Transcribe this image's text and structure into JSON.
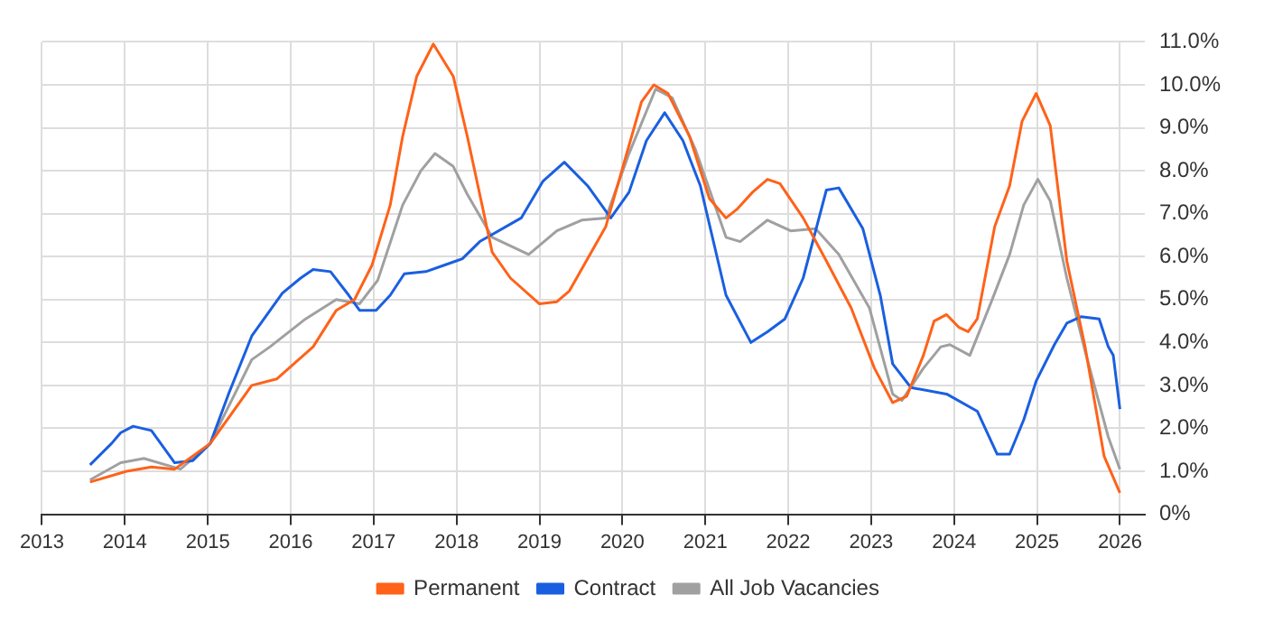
{
  "chart_data": {
    "type": "line",
    "legend": "bottom",
    "grid": true,
    "marker": "none",
    "line_style": "solid",
    "xlim": [
      2013,
      2026.3
    ],
    "xticks": [
      2013,
      2014,
      2015,
      2016,
      2017,
      2018,
      2019,
      2020,
      2021,
      2022,
      2023,
      2024,
      2025,
      2026
    ],
    "ylim": [
      0,
      11
    ],
    "yticks": [
      {
        "value": 0,
        "label": "0%"
      },
      {
        "value": 1,
        "label": "1.0%"
      },
      {
        "value": 2,
        "label": "2.0%"
      },
      {
        "value": 3,
        "label": "3.0%"
      },
      {
        "value": 4,
        "label": "4.0%"
      },
      {
        "value": 5,
        "label": "5.0%"
      },
      {
        "value": 6,
        "label": "6.0%"
      },
      {
        "value": 7,
        "label": "7.0%"
      },
      {
        "value": 8,
        "label": "8.0%"
      },
      {
        "value": 9,
        "label": "9.0%"
      },
      {
        "value": 10,
        "label": "10.0%"
      },
      {
        "value": 11,
        "label": "11.0%"
      }
    ],
    "series": [
      {
        "name": "Permanent",
        "color": "#ff6219",
        "x": [
          2013.58,
          2014.02,
          2014.32,
          2014.6,
          2015.03,
          2015.53,
          2015.83,
          2016.27,
          2016.55,
          2016.77,
          2016.98,
          2017.2,
          2017.35,
          2017.52,
          2017.72,
          2017.96,
          2018.13,
          2018.43,
          2018.65,
          2019.0,
          2019.21,
          2019.36,
          2019.8,
          2020.23,
          2020.38,
          2020.55,
          2020.81,
          2021.05,
          2021.25,
          2021.38,
          2021.57,
          2021.75,
          2021.9,
          2022.18,
          2022.46,
          2022.76,
          2023.04,
          2023.26,
          2023.43,
          2023.63,
          2023.76,
          2023.91,
          2024.06,
          2024.17,
          2024.28,
          2024.49,
          2024.67,
          2024.82,
          2024.99,
          2025.16,
          2025.36,
          2025.58,
          2025.81,
          2026.0
        ],
        "values": [
          0.75,
          1.0,
          1.1,
          1.05,
          1.65,
          3.0,
          3.15,
          3.9,
          4.75,
          5.0,
          5.8,
          7.2,
          8.8,
          10.2,
          10.95,
          10.2,
          8.8,
          6.1,
          5.5,
          4.9,
          4.95,
          5.2,
          6.7,
          9.6,
          10.0,
          9.8,
          8.8,
          7.35,
          6.9,
          7.1,
          7.5,
          7.8,
          7.7,
          6.9,
          5.9,
          4.8,
          3.4,
          2.6,
          2.75,
          3.7,
          4.5,
          4.65,
          4.35,
          4.25,
          4.55,
          6.7,
          7.65,
          9.15,
          9.8,
          9.05,
          5.9,
          3.9,
          1.35,
          0.5
        ]
      },
      {
        "name": "Contract",
        "color": "#1a5fe0",
        "x": [
          2013.58,
          2013.84,
          2013.95,
          2014.1,
          2014.32,
          2014.6,
          2014.82,
          2015.03,
          2015.25,
          2015.53,
          2015.9,
          2016.12,
          2016.27,
          2016.48,
          2016.7,
          2016.83,
          2017.03,
          2017.2,
          2017.37,
          2017.63,
          2017.85,
          2018.07,
          2018.28,
          2018.78,
          2019.04,
          2019.3,
          2019.58,
          2019.86,
          2020.08,
          2020.29,
          2020.51,
          2020.73,
          2020.94,
          2021.25,
          2021.55,
          2021.75,
          2021.96,
          2022.18,
          2022.46,
          2022.61,
          2022.9,
          2023.11,
          2023.26,
          2023.48,
          2023.91,
          2024.28,
          2024.52,
          2024.67,
          2024.84,
          2024.99,
          2025.21,
          2025.36,
          2025.53,
          2025.75,
          2025.86,
          2025.92,
          2026.0
        ],
        "values": [
          1.15,
          1.65,
          1.9,
          2.05,
          1.95,
          1.2,
          1.25,
          1.65,
          2.8,
          4.15,
          5.15,
          5.5,
          5.7,
          5.65,
          5.1,
          4.75,
          4.75,
          5.1,
          5.6,
          5.65,
          5.8,
          5.95,
          6.35,
          6.9,
          7.75,
          8.2,
          7.65,
          6.9,
          7.5,
          8.7,
          9.35,
          8.7,
          7.65,
          5.1,
          4.0,
          4.25,
          4.55,
          5.5,
          7.55,
          7.6,
          6.65,
          5.1,
          3.5,
          2.95,
          2.8,
          2.4,
          1.4,
          1.4,
          2.2,
          3.1,
          3.95,
          4.45,
          4.6,
          4.55,
          3.9,
          3.7,
          2.45
        ]
      },
      {
        "name": "All Job Vacancies",
        "color": "#a0a0a0",
        "x": [
          2013.58,
          2013.95,
          2014.23,
          2014.67,
          2015.03,
          2015.53,
          2015.75,
          2016.18,
          2016.55,
          2016.83,
          2017.05,
          2017.35,
          2017.57,
          2017.74,
          2017.96,
          2018.13,
          2018.43,
          2018.87,
          2019.21,
          2019.51,
          2019.8,
          2020.08,
          2020.4,
          2020.6,
          2020.88,
          2021.25,
          2021.42,
          2021.75,
          2022.03,
          2022.33,
          2022.61,
          2022.98,
          2023.26,
          2023.37,
          2023.63,
          2023.84,
          2023.95,
          2024.19,
          2024.45,
          2024.67,
          2024.84,
          2025.01,
          2025.16,
          2025.36,
          2025.58,
          2025.86,
          2026.0
        ],
        "values": [
          0.8,
          1.2,
          1.3,
          1.05,
          1.65,
          3.6,
          3.9,
          4.55,
          5.0,
          4.9,
          5.45,
          7.2,
          8.0,
          8.4,
          8.1,
          7.45,
          6.45,
          6.05,
          6.6,
          6.85,
          6.9,
          8.4,
          9.9,
          9.7,
          8.5,
          6.45,
          6.35,
          6.85,
          6.6,
          6.65,
          6.05,
          4.8,
          2.8,
          2.65,
          3.4,
          3.9,
          3.95,
          3.7,
          4.95,
          6.05,
          7.2,
          7.8,
          7.3,
          5.5,
          3.8,
          1.8,
          1.05
        ]
      }
    ]
  }
}
